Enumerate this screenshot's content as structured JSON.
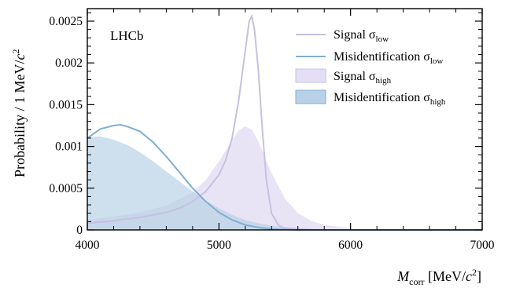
{
  "chart_data": {
    "type": "area",
    "title": "",
    "experiment_label": "LHCb",
    "xlabel": {
      "main": "M",
      "sub": "corr",
      "bracket_open": " [MeV/",
      "c": "c",
      "sup": "2",
      "bracket_close": "]"
    },
    "ylabel": {
      "prefix": "Probability / 1 MeV/",
      "c": "c",
      "sup": "2"
    },
    "xlim": [
      4000,
      7000
    ],
    "ylim": [
      0,
      0.00265
    ],
    "xticks": [
      4000,
      5000,
      6000,
      7000
    ],
    "xtick_labels": [
      "4000",
      "5000",
      "6000",
      "7000"
    ],
    "yticks": [
      0,
      0.0005,
      0.001,
      0.0015,
      0.002,
      0.0025
    ],
    "ytick_labels": [
      "0",
      "0.0005",
      "0.001",
      "0.0015",
      "0.002",
      "0.0025"
    ],
    "grid": false,
    "legend_position": "top-right",
    "colors": {
      "signal": "#c7c0e0",
      "signal_fill": "#e4dff5",
      "misid": "#7fafd0",
      "misid_fill": "#b9d1e6"
    },
    "series": [
      {
        "name": "Signal σ_low",
        "legend_main": "Signal σ",
        "legend_sub": "low",
        "style": "line",
        "x": [
          4000,
          4200,
          4400,
          4600,
          4700,
          4800,
          4900,
          5000,
          5050,
          5100,
          5150,
          5200,
          5230,
          5250,
          5270,
          5300,
          5330,
          5360,
          5400,
          5450,
          5500,
          5600,
          5800,
          6000,
          6500,
          7000
        ],
        "y": [
          8e-05,
          0.00011,
          0.00015,
          0.00021,
          0.00026,
          0.00034,
          0.00046,
          0.00066,
          0.00083,
          0.0011,
          0.00155,
          0.00215,
          0.0025,
          0.00256,
          0.0024,
          0.0019,
          0.0012,
          0.0006,
          0.0002,
          6e-05,
          2e-05,
          1e-05,
          0.0,
          0.0,
          0.0,
          0.0
        ]
      },
      {
        "name": "Misidentification σ_low",
        "legend_main": "Misidentification σ",
        "legend_sub": "low",
        "style": "line",
        "x": [
          4000,
          4100,
          4200,
          4250,
          4300,
          4400,
          4500,
          4600,
          4700,
          4800,
          4900,
          5000,
          5100,
          5200,
          5300,
          5400,
          5600,
          6000,
          6500,
          7000
        ],
        "y": [
          0.0011,
          0.00121,
          0.00125,
          0.00126,
          0.00124,
          0.00118,
          0.00105,
          0.00088,
          0.00069,
          0.0005,
          0.00034,
          0.00021,
          0.00012,
          6e-05,
          3e-05,
          1e-05,
          0.0,
          0.0,
          0.0,
          0.0
        ]
      },
      {
        "name": "Signal σ_high",
        "legend_main": "Signal σ",
        "legend_sub": "high",
        "style": "fill",
        "x": [
          4000,
          4200,
          4400,
          4600,
          4800,
          4900,
          5000,
          5100,
          5150,
          5200,
          5250,
          5300,
          5350,
          5400,
          5500,
          5600,
          5700,
          5800,
          6000,
          6200,
          6500,
          7000
        ],
        "y": [
          0.00012,
          0.00016,
          0.00021,
          0.00029,
          0.00045,
          0.0006,
          0.00082,
          0.00108,
          0.00119,
          0.00124,
          0.0012,
          0.00106,
          0.00087,
          0.00068,
          0.00038,
          0.0002,
          0.00011,
          6e-05,
          2e-05,
          1e-05,
          0.0,
          0.0
        ]
      },
      {
        "name": "Misidentification σ_high",
        "legend_main": "Misidentification σ",
        "legend_sub": "high",
        "style": "fill",
        "x": [
          4000,
          4100,
          4200,
          4300,
          4400,
          4500,
          4600,
          4700,
          4800,
          4900,
          5000,
          5100,
          5200,
          5300,
          5400,
          5600,
          5800,
          6000,
          6500,
          7000
        ],
        "y": [
          0.00111,
          0.00112,
          0.00108,
          0.00102,
          0.00093,
          0.00082,
          0.0007,
          0.00058,
          0.00046,
          0.00035,
          0.00026,
          0.00018,
          0.00012,
          8e-05,
          5e-05,
          2e-05,
          1e-05,
          0.0,
          0.0,
          0.0
        ]
      }
    ]
  }
}
